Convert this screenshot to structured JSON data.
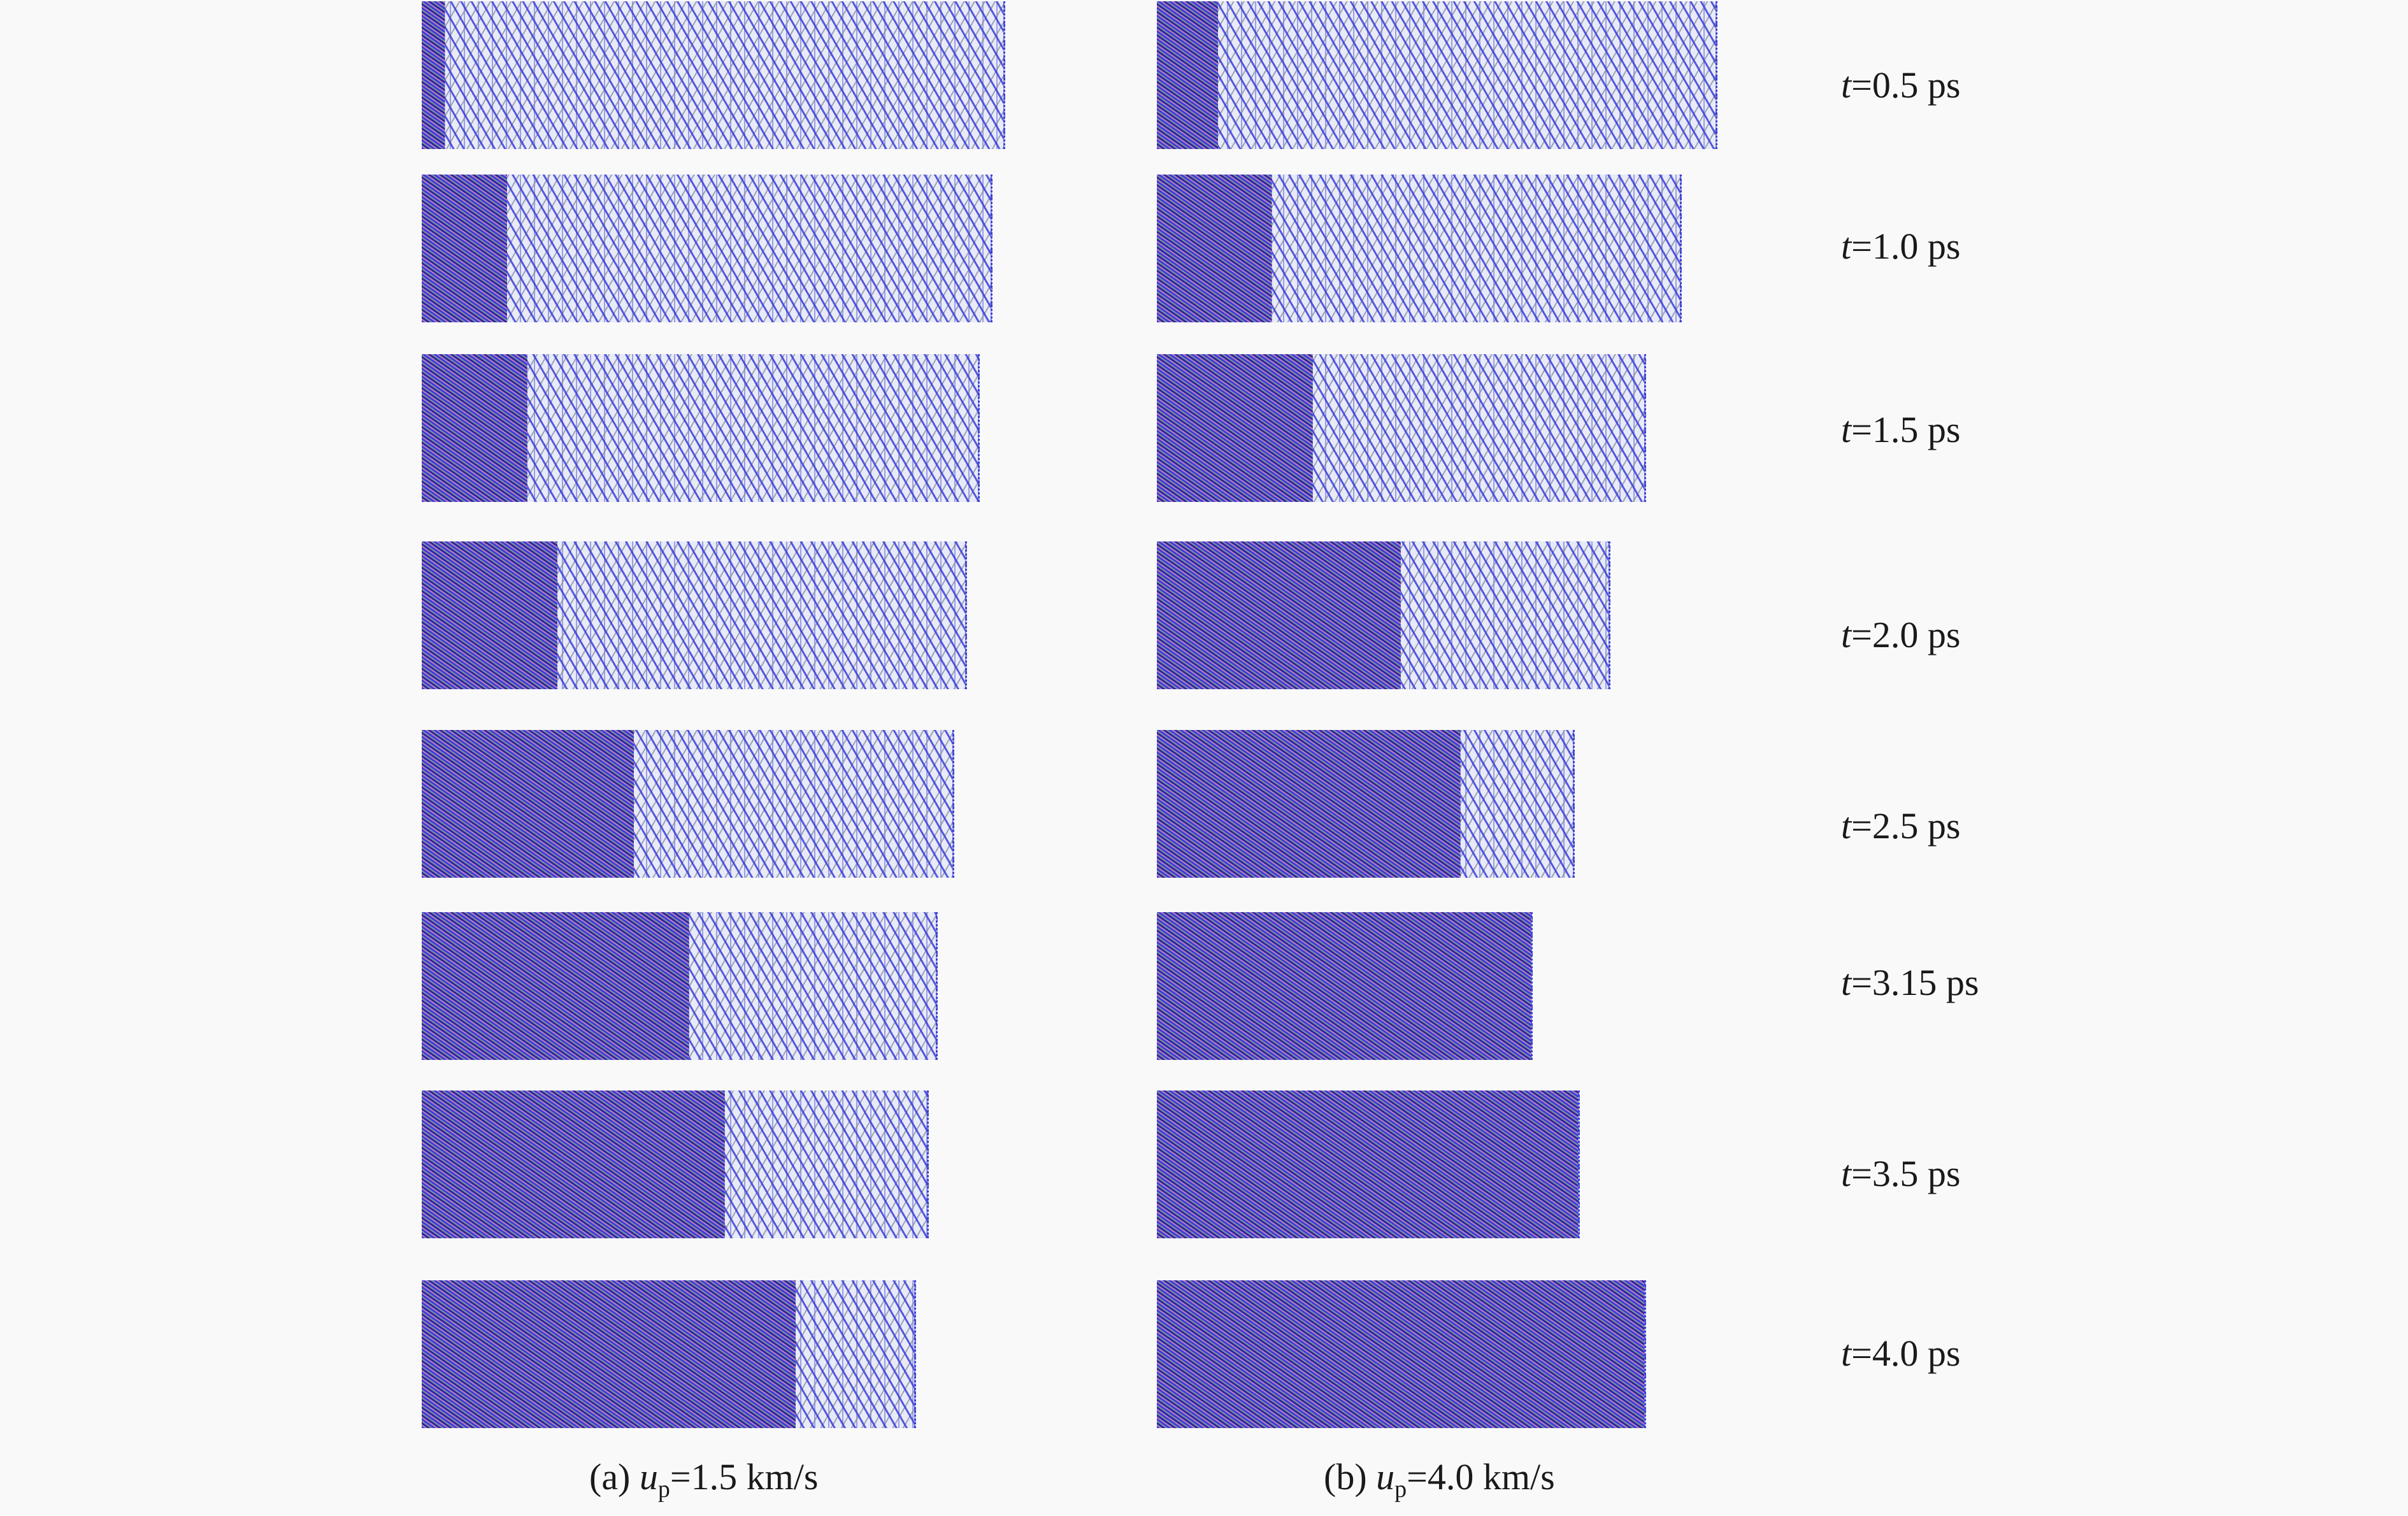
{
  "figure": {
    "time_labels": [
      {
        "prefix": "t",
        "rest": "=0.5 ps"
      },
      {
        "prefix": "t",
        "rest": "=1.0 ps"
      },
      {
        "prefix": "t",
        "rest": "=1.5 ps"
      },
      {
        "prefix": "t",
        "rest": "=2.0 ps"
      },
      {
        "prefix": "t",
        "rest": "=2.5 ps"
      },
      {
        "prefix": "t",
        "rest": "=3.15 ps"
      },
      {
        "prefix": "t",
        "rest": "=3.5 ps"
      },
      {
        "prefix": "t",
        "rest": "=4.0 ps"
      }
    ],
    "caption_a": {
      "pre": "(a) ",
      "var": "u",
      "sub": "p",
      "post": "=1.5 km/s"
    },
    "caption_b": {
      "pre": "(b) ",
      "var": "u",
      "sub": "p",
      "post": "=4.0 km/s"
    },
    "shocked_fraction": {
      "a": [
        0.04,
        0.15,
        0.19,
        0.25,
        0.4,
        0.52,
        0.6,
        0.76
      ],
      "b": [
        0.11,
        0.22,
        0.32,
        0.54,
        0.73,
        1.0,
        1.0,
        1.0
      ]
    },
    "colors": {
      "atom_blue": "#3b3fd8",
      "atom_dark": "#2a2a9a",
      "atom_pink": "#c080c0",
      "atom_gray": "#8a8fa0",
      "background": "#f9f9f9"
    }
  }
}
